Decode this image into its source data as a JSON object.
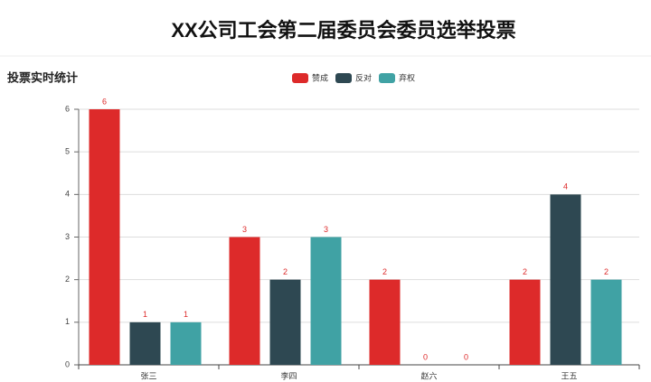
{
  "header": {
    "title": "XX公司工会第二届委员会委员选举投票"
  },
  "chart_data": {
    "type": "bar",
    "title": "投票实时统计",
    "categories": [
      "张三",
      "李四",
      "赵六",
      "王五"
    ],
    "series": [
      {
        "name": "赞成",
        "color": "#dd2a2a",
        "values": [
          6,
          3,
          2,
          2
        ]
      },
      {
        "name": "反对",
        "color": "#2e4852",
        "values": [
          1,
          2,
          0,
          4
        ]
      },
      {
        "name": "弃权",
        "color": "#40a2a4",
        "values": [
          1,
          3,
          0,
          2
        ]
      }
    ],
    "ylim": [
      0,
      6
    ],
    "yticks": [
      0,
      1,
      2,
      3,
      4,
      5,
      6
    ],
    "grid": true,
    "legend": "top"
  }
}
